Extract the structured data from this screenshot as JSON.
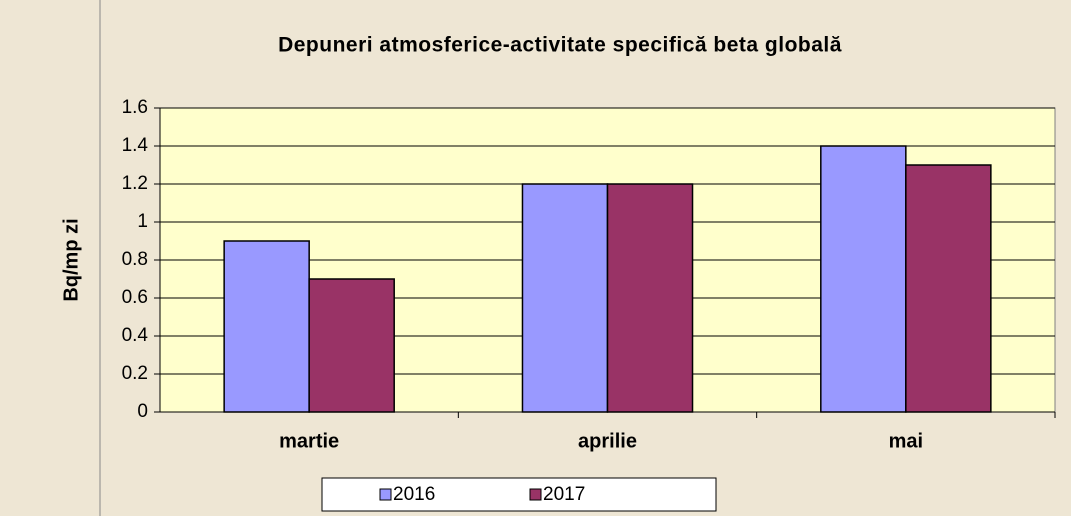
{
  "chart_data": {
    "type": "bar",
    "title": "Depuneri atmosferice-activitate specifică beta globală",
    "y_label": "Bq/mp zi",
    "categories": [
      "martie",
      "aprilie",
      "mai"
    ],
    "series": [
      {
        "name": "2016",
        "color": "#9999ff",
        "values": [
          0.9,
          1.2,
          1.4
        ]
      },
      {
        "name": "2017",
        "color": "#993366",
        "values": [
          0.7,
          1.2,
          1.3
        ]
      }
    ],
    "ylim": [
      0,
      1.6
    ],
    "yticks": [
      0,
      0.2,
      0.4,
      0.6,
      0.8,
      1,
      1.2,
      1.4,
      1.6
    ],
    "grid": true,
    "legend": "bottom"
  }
}
